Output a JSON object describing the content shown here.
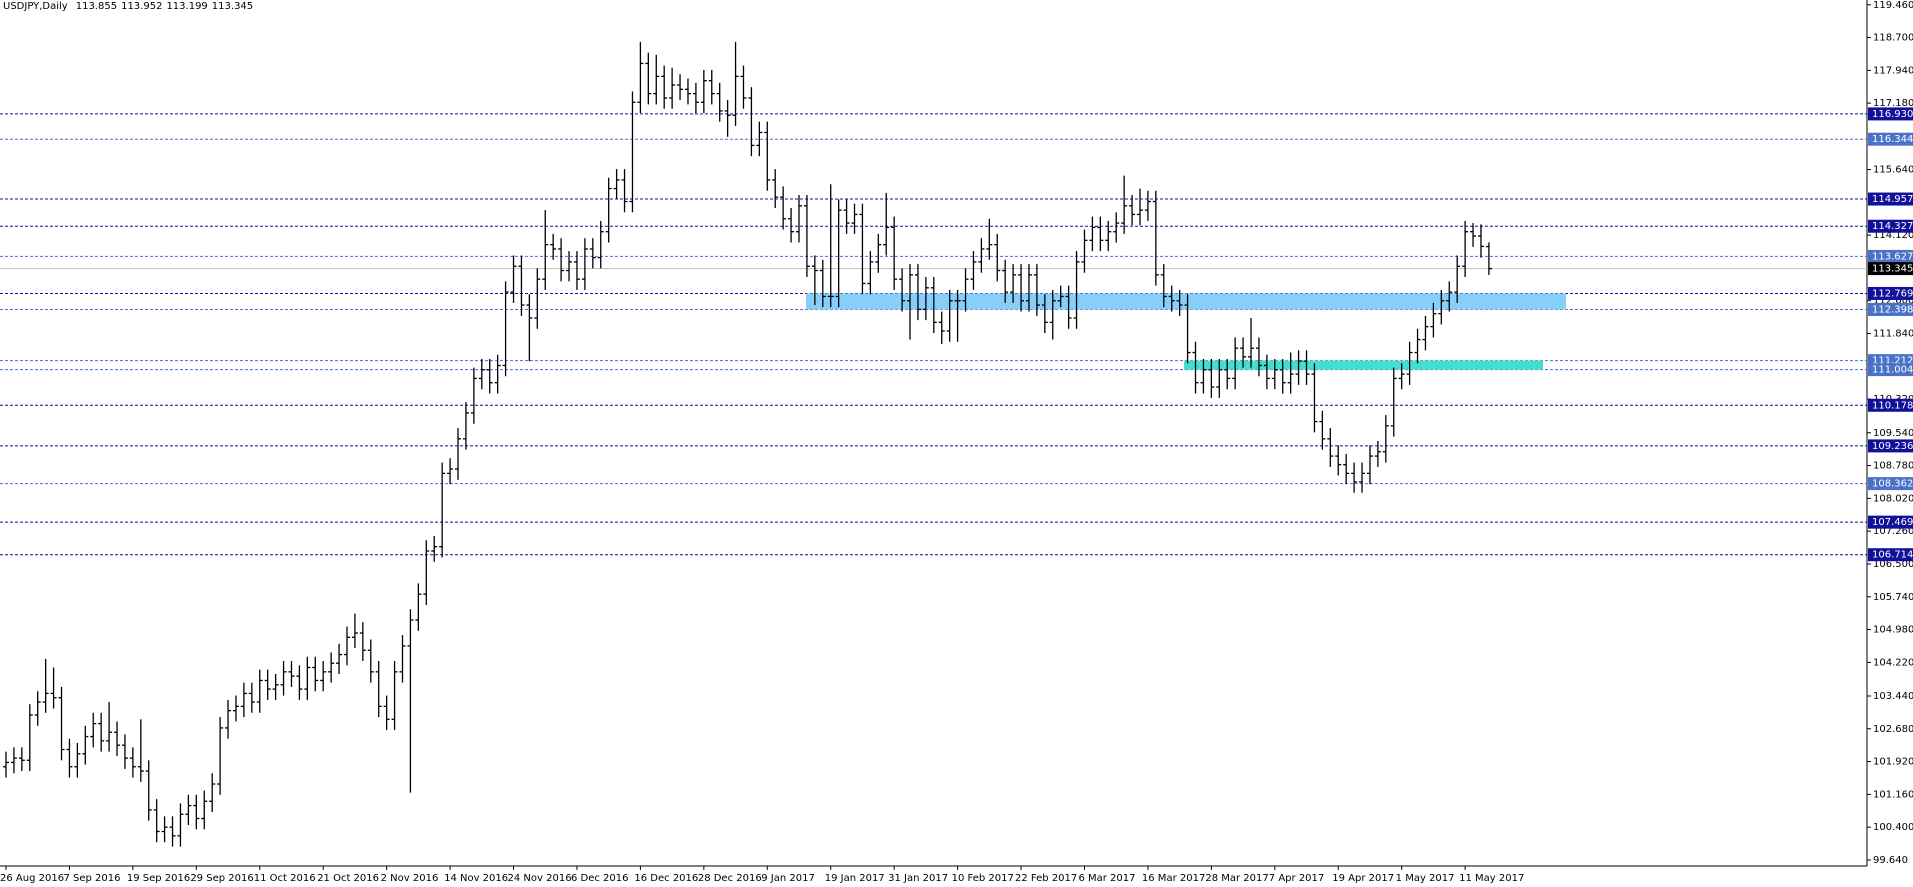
{
  "chart_data": {
    "type": "ohlc",
    "title": "USDJPY,Daily",
    "color": "#000000",
    "ylim": [
      99.5,
      119.57
    ],
    "yticks": [
      {
        "value": 119.46,
        "label": "119.460"
      },
      {
        "value": 118.7,
        "label": "118.700"
      },
      {
        "value": 117.94,
        "label": "117.940"
      },
      {
        "value": 117.18,
        "label": "117.180"
      },
      {
        "value": 115.64,
        "label": "115.640"
      },
      {
        "value": 114.12,
        "label": "114.120"
      },
      {
        "value": 112.6,
        "label": "112.600"
      },
      {
        "value": 111.84,
        "label": "111.840"
      },
      {
        "value": 110.32,
        "label": "110.320"
      },
      {
        "value": 109.54,
        "label": "109.540"
      },
      {
        "value": 108.78,
        "label": "108.780"
      },
      {
        "value": 108.02,
        "label": "108.020"
      },
      {
        "value": 107.26,
        "label": "107.260"
      },
      {
        "value": 106.5,
        "label": "106.500"
      },
      {
        "value": 105.74,
        "label": "105.740"
      },
      {
        "value": 104.98,
        "label": "104.980"
      },
      {
        "value": 104.22,
        "label": "104.220"
      },
      {
        "value": 103.44,
        "label": "103.440"
      },
      {
        "value": 102.68,
        "label": "102.680"
      },
      {
        "value": 101.92,
        "label": "101.920"
      },
      {
        "value": 101.16,
        "label": "101.160"
      },
      {
        "value": 100.4,
        "label": "100.400"
      },
      {
        "value": 99.64,
        "label": "99.640"
      }
    ],
    "grid": false,
    "categories": [
      "26 Aug 2016",
      null,
      null,
      null,
      null,
      null,
      null,
      null,
      "7 Sep 2016",
      null,
      null,
      null,
      null,
      null,
      null,
      null,
      "19 Sep 2016",
      null,
      null,
      null,
      null,
      null,
      null,
      null,
      "29 Sep 2016",
      null,
      null,
      null,
      null,
      null,
      null,
      null,
      "11 Oct 2016",
      null,
      null,
      null,
      null,
      null,
      null,
      null,
      "21 Oct 2016",
      null,
      null,
      null,
      null,
      null,
      null,
      null,
      "2 Nov 2016",
      null,
      null,
      null,
      null,
      null,
      null,
      null,
      "14 Nov 2016",
      null,
      null,
      null,
      null,
      null,
      null,
      null,
      "24 Nov 2016",
      null,
      null,
      null,
      null,
      null,
      null,
      null,
      "6 Dec 2016",
      null,
      null,
      null,
      null,
      null,
      null,
      null,
      "16 Dec 2016",
      null,
      null,
      null,
      null,
      null,
      null,
      null,
      "28 Dec 2016",
      null,
      null,
      null,
      null,
      null,
      null,
      null,
      "9 Jan 2017",
      null,
      null,
      null,
      null,
      null,
      null,
      null,
      "19 Jan 2017",
      null,
      null,
      null,
      null,
      null,
      null,
      null,
      "31 Jan 2017",
      null,
      null,
      null,
      null,
      null,
      null,
      null,
      "10 Feb 2017",
      null,
      null,
      null,
      null,
      null,
      null,
      null,
      "22 Feb 2017",
      null,
      null,
      null,
      null,
      null,
      null,
      null,
      "6 Mar 2017",
      null,
      null,
      null,
      null,
      null,
      null,
      null,
      "16 Mar 2017",
      null,
      null,
      null,
      null,
      null,
      null,
      null,
      "28 Mar 2017",
      null,
      null,
      null,
      null,
      null,
      null,
      null,
      "7 Apr 2017",
      null,
      null,
      null,
      null,
      null,
      null,
      null,
      "19 Apr 2017",
      null,
      null,
      null,
      null,
      null,
      null,
      null,
      "1 May 2017",
      null,
      null,
      null,
      null,
      null,
      null,
      null,
      "11 May 2017",
      null,
      null,
      null
    ],
    "open": [
      101.8,
      101.9,
      102,
      101.95,
      103,
      103.3,
      103.5,
      103.4,
      102.2,
      101.8,
      102.1,
      102.5,
      102.8,
      102.4,
      102.6,
      102.3,
      102,
      101.8,
      101.7,
      100.8,
      100.3,
      100.4,
      100.2,
      100.7,
      100.9,
      100.6,
      101,
      101.4,
      102.7,
      103.1,
      103.2,
      103.5,
      103.3,
      103.8,
      103.6,
      103.7,
      104,
      103.9,
      103.6,
      104.1,
      103.8,
      104,
      104.2,
      104.4,
      104.8,
      104.9,
      104.5,
      104,
      103.2,
      102.9,
      104,
      104.6,
      105.2,
      105.8,
      106.8,
      106.9,
      108.6,
      108.7,
      109.4,
      110,
      110.8,
      111,
      110.7,
      111.1,
      112.8,
      113.4,
      112.5,
      112.2,
      113.1,
      113.9,
      113.8,
      113.3,
      113.5,
      113.1,
      113.8,
      113.6,
      114.2,
      115.2,
      115.4,
      114.9,
      117.2,
      118.1,
      117.4,
      117.8,
      117.3,
      117.6,
      117.5,
      117.4,
      117.2,
      117.7,
      117.4,
      117,
      116.9,
      117.8,
      117.3,
      116.2,
      116.5,
      115.4,
      115,
      114.5,
      114.2,
      114.8,
      113.4,
      113.3,
      112.7,
      112.7,
      114.7,
      114.4,
      114.6,
      113,
      113.5,
      113.9,
      114.3,
      113.1,
      112.6,
      113.2,
      112.4,
      112.9,
      112.1,
      111.9,
      112.6,
      112.6,
      113.1,
      113.5,
      113.8,
      113.9,
      113.3,
      112.8,
      113.2,
      112.6,
      113.2,
      112.5,
      112.1,
      112.6,
      112.7,
      112.2,
      113.5,
      114,
      114.3,
      114,
      114.2,
      114.4,
      114.8,
      114.6,
      114.7,
      114.9,
      113.2,
      112.7,
      112.6,
      112.5,
      111.4,
      110.7,
      111,
      110.6,
      111,
      110.8,
      111.5,
      111.3,
      111.5,
      111.1,
      110.8,
      111,
      110.7,
      110.9,
      111.2,
      110.9,
      109.8,
      109.4,
      109,
      108.8,
      108.6,
      108.4,
      108.6,
      109,
      109.1,
      109.7,
      110.8,
      110.9,
      111.4,
      111.7,
      112,
      112.3,
      112.6,
      112.8,
      113.4,
      114.2,
      114.1,
      113.855
    ],
    "high": [
      102.15,
      102.25,
      102.25,
      103.25,
      103.55,
      104.3,
      104.1,
      103.65,
      102.45,
      102.35,
      102.75,
      103.05,
      103.05,
      103.3,
      102.85,
      102.55,
      102.25,
      102.9,
      101.95,
      101.05,
      100.65,
      100.65,
      100.95,
      101.15,
      101.15,
      101.25,
      101.65,
      102.95,
      103.35,
      103.45,
      103.75,
      103.75,
      104.05,
      104.05,
      103.95,
      104.25,
      104.25,
      104.15,
      104.35,
      104.35,
      104.25,
      104.45,
      104.65,
      105.05,
      105.35,
      105.15,
      104.75,
      104.25,
      103.45,
      104.25,
      104.85,
      105.45,
      106.05,
      107.05,
      107.15,
      108.85,
      108.95,
      109.65,
      110.25,
      111.05,
      111.25,
      111.25,
      111.35,
      113.05,
      113.65,
      113.65,
      112.75,
      113.35,
      114.7,
      114.15,
      114.05,
      113.75,
      113.75,
      114.05,
      114.05,
      114.45,
      115.45,
      115.65,
      115.65,
      117.45,
      118.6,
      118.35,
      118.3,
      118.05,
      118,
      117.85,
      117.75,
      117.65,
      117.95,
      117.95,
      117.65,
      117.25,
      118.6,
      118.05,
      117.55,
      116.75,
      116.75,
      115.65,
      115.25,
      114.75,
      115.05,
      115.05,
      113.65,
      113.55,
      115.3,
      114.95,
      114.95,
      114.85,
      114.85,
      113.75,
      114.15,
      115.1,
      114.55,
      113.35,
      113.45,
      113.45,
      113.15,
      113.15,
      112.35,
      112.85,
      112.85,
      113.35,
      113.75,
      114.05,
      114.5,
      114.15,
      113.55,
      113.45,
      113.45,
      113.45,
      113.45,
      112.75,
      112.85,
      112.95,
      112.95,
      113.75,
      114.25,
      114.55,
      114.55,
      114.45,
      114.65,
      115.5,
      115.05,
      115.2,
      115.15,
      115.15,
      113.45,
      112.95,
      112.85,
      112.75,
      111.65,
      111.25,
      111.25,
      111.25,
      111.25,
      111.75,
      111.75,
      112.2,
      111.75,
      111.35,
      111.25,
      111.25,
      111.4,
      111.45,
      111.45,
      111.15,
      110.05,
      109.65,
      109.25,
      109.05,
      108.85,
      108.85,
      109.25,
      109.35,
      109.95,
      111.05,
      111.15,
      111.65,
      111.95,
      112.25,
      112.55,
      112.85,
      113.05,
      113.65,
      114.45,
      114.4,
      114.37,
      113.952
    ],
    "low": [
      101.55,
      101.65,
      101.7,
      101.7,
      102.75,
      103.05,
      103.15,
      101.95,
      101.55,
      101.55,
      101.85,
      102.25,
      102.15,
      102.15,
      102.05,
      101.75,
      101.55,
      101.45,
      100.55,
      100.05,
      100.05,
      99.95,
      99.95,
      100.45,
      100.35,
      100.35,
      100.75,
      101.15,
      102.45,
      102.85,
      102.95,
      103.05,
      103.05,
      103.35,
      103.35,
      103.45,
      103.65,
      103.35,
      103.35,
      103.55,
      103.55,
      103.75,
      103.95,
      104.15,
      104.55,
      104.25,
      103.75,
      102.95,
      102.65,
      102.65,
      103.75,
      101.2,
      104.95,
      105.55,
      106.55,
      106.65,
      108.35,
      108.45,
      109.15,
      109.75,
      110.55,
      110.45,
      110.45,
      110.85,
      112.55,
      112.25,
      111.2,
      111.95,
      112.85,
      113.55,
      113.05,
      113.05,
      112.85,
      112.85,
      113.35,
      113.35,
      113.95,
      114.95,
      114.65,
      114.65,
      116.95,
      117.15,
      117.15,
      117.05,
      117.05,
      117.25,
      117.15,
      116.95,
      116.95,
      117.15,
      116.75,
      116.4,
      116.65,
      117.05,
      115.95,
      115.95,
      115.15,
      114.75,
      114.25,
      113.95,
      113.95,
      113.15,
      112.5,
      112.45,
      112.45,
      112.45,
      114.15,
      114.15,
      112.75,
      112.75,
      113.25,
      113.65,
      112.85,
      112.35,
      111.7,
      112.15,
      112.15,
      111.85,
      111.6,
      111.65,
      111.65,
      112.35,
      112.85,
      113.25,
      113.55,
      113.05,
      112.55,
      112.55,
      112.35,
      112.35,
      112.25,
      111.85,
      111.7,
      112.45,
      111.95,
      111.95,
      113.25,
      113.75,
      113.75,
      113.75,
      113.95,
      114.15,
      114.35,
      114.35,
      114.45,
      112.95,
      112.45,
      112.35,
      112.25,
      111.15,
      110.45,
      110.45,
      110.35,
      110.35,
      110.55,
      110.55,
      111.05,
      111.05,
      110.85,
      110.55,
      110.55,
      110.45,
      110.45,
      110.65,
      110.65,
      109.55,
      109.15,
      108.75,
      108.55,
      108.35,
      108.15,
      108.15,
      108.35,
      108.75,
      108.85,
      109.45,
      110.55,
      110.65,
      111.15,
      111.45,
      111.75,
      112.05,
      112.35,
      112.55,
      113.15,
      113.85,
      113.6,
      113.199
    ],
    "close": [
      101.9,
      102,
      101.95,
      103,
      103.3,
      103.5,
      103.4,
      102.2,
      101.8,
      102.1,
      102.5,
      102.8,
      102.4,
      102.6,
      102.3,
      102,
      101.8,
      101.7,
      100.8,
      100.3,
      100.4,
      100.2,
      100.7,
      100.9,
      100.6,
      101,
      101.4,
      102.7,
      103.1,
      103.2,
      103.5,
      103.3,
      103.8,
      103.6,
      103.7,
      104,
      103.9,
      103.6,
      104.1,
      103.8,
      104,
      104.2,
      104.4,
      104.8,
      104.9,
      104.5,
      104,
      103.2,
      102.9,
      104,
      104.6,
      105.2,
      105.8,
      106.8,
      106.9,
      108.6,
      108.7,
      109.4,
      110,
      110.8,
      111,
      110.7,
      111.1,
      112.8,
      113.4,
      112.5,
      112.2,
      113.1,
      113.9,
      113.8,
      113.3,
      113.5,
      113.1,
      113.8,
      113.6,
      114.2,
      115.2,
      115.4,
      114.9,
      117.2,
      118.1,
      117.4,
      117.8,
      117.3,
      117.6,
      117.5,
      117.4,
      117.2,
      117.7,
      117.4,
      117,
      116.9,
      117.8,
      117.3,
      116.2,
      116.5,
      115.4,
      115,
      114.5,
      114.2,
      114.8,
      113.4,
      113.3,
      112.7,
      112.7,
      114.7,
      114.4,
      114.6,
      113,
      113.5,
      113.9,
      114.3,
      113.1,
      112.6,
      113.2,
      112.4,
      112.9,
      112.1,
      111.9,
      112.6,
      112.6,
      113.1,
      113.5,
      113.8,
      113.9,
      113.3,
      112.8,
      113.2,
      112.6,
      113.2,
      112.5,
      112.1,
      112.6,
      112.7,
      112.2,
      113.5,
      114,
      114.3,
      114,
      114.2,
      114.4,
      114.8,
      114.6,
      114.7,
      114.9,
      113.2,
      112.7,
      112.6,
      112.5,
      111.4,
      110.7,
      111,
      110.6,
      111,
      110.8,
      111.5,
      111.3,
      111.5,
      111.1,
      110.8,
      111,
      110.7,
      110.9,
      111.2,
      110.9,
      109.8,
      109.4,
      109,
      108.8,
      108.6,
      108.4,
      108.6,
      109,
      109.1,
      109.7,
      110.8,
      110.9,
      111.4,
      111.7,
      112,
      112.3,
      112.6,
      112.8,
      113.4,
      114.2,
      114.1,
      113.86,
      113.345
    ],
    "zones": [
      {
        "low": 112.398,
        "high": 112.769,
        "color": "#87cefa"
      },
      {
        "low": 111.004,
        "high": 111.212,
        "color": "#40e0d0"
      }
    ],
    "levels": [
      {
        "value": 116.93,
        "label": "116.930",
        "color": "#10109a"
      },
      {
        "value": 116.344,
        "color": "#4a72c8"
      },
      {
        "value": 114.957,
        "color": "#10109a"
      },
      {
        "value": 114.327,
        "color": "#10109a"
      },
      {
        "value": 113.627,
        "color": "#4a72c8"
      },
      {
        "value": 112.769,
        "color": "#10109a"
      },
      {
        "value": 112.398,
        "color": "#4a72c8"
      },
      {
        "value": 111.212,
        "color": "#4a72c8"
      },
      {
        "value": 111.004,
        "color": "#4a72c8"
      },
      {
        "value": 110.178,
        "color": "#10109a"
      },
      {
        "value": 109.236,
        "color": "#10109a"
      },
      {
        "value": 108.362,
        "color": "#4a72c8"
      },
      {
        "value": 107.469,
        "color": "#10109a"
      },
      {
        "value": 106.714,
        "color": "#10109a"
      }
    ]
  }
}
